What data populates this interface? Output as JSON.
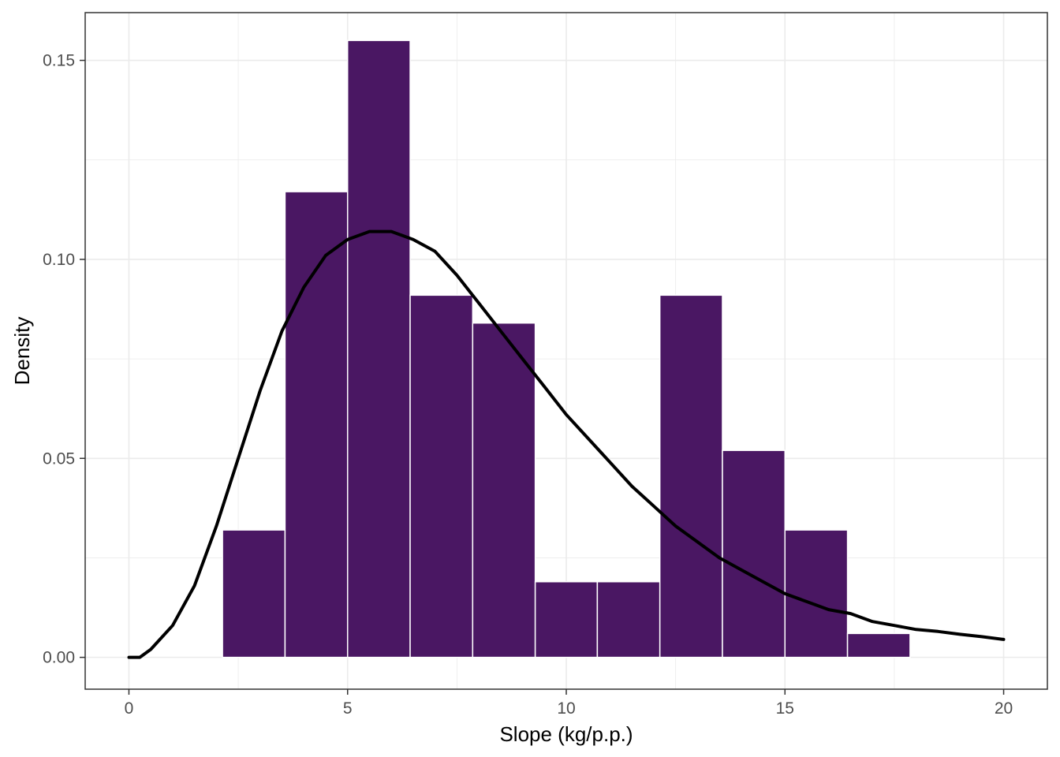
{
  "chart_data": {
    "type": "bar",
    "subtype": "histogram-with-density",
    "title": "",
    "xlabel": "Slope (kg/p.p.)",
    "ylabel": "Density",
    "xlim": [
      -1,
      21
    ],
    "ylim": [
      -0.008,
      0.162
    ],
    "x_ticks": [
      0,
      5,
      10,
      15,
      20
    ],
    "x_tick_labels": [
      "0",
      "5",
      "10",
      "15",
      "20"
    ],
    "y_ticks": [
      0.0,
      0.05,
      0.1,
      0.15
    ],
    "y_tick_labels": [
      "0.00",
      "0.05",
      "0.10",
      "0.15"
    ],
    "grid": true,
    "theme": "black-and-white panel border",
    "bins": [
      {
        "x0": 2.14,
        "x1": 3.57,
        "density": 0.032
      },
      {
        "x0": 3.57,
        "x1": 5.0,
        "density": 0.117
      },
      {
        "x0": 5.0,
        "x1": 6.43,
        "density": 0.155
      },
      {
        "x0": 6.43,
        "x1": 7.86,
        "density": 0.091
      },
      {
        "x0": 7.86,
        "x1": 9.29,
        "density": 0.084
      },
      {
        "x0": 9.29,
        "x1": 10.71,
        "density": 0.019
      },
      {
        "x0": 10.71,
        "x1": 12.14,
        "density": 0.019
      },
      {
        "x0": 12.14,
        "x1": 13.57,
        "density": 0.091
      },
      {
        "x0": 13.57,
        "x1": 15.0,
        "density": 0.052
      },
      {
        "x0": 15.0,
        "x1": 16.43,
        "density": 0.032
      },
      {
        "x0": 16.43,
        "x1": 17.86,
        "density": 0.006
      }
    ],
    "density_curve": {
      "x": [
        0,
        0.25,
        0.5,
        1,
        1.5,
        2,
        2.5,
        3,
        3.5,
        4,
        4.5,
        5,
        5.5,
        6,
        6.5,
        7,
        7.5,
        8,
        8.5,
        9,
        9.5,
        10,
        10.5,
        11,
        11.5,
        12,
        12.5,
        13,
        13.5,
        14,
        14.5,
        15,
        15.5,
        16,
        16.5,
        17,
        17.5,
        18,
        18.5,
        19,
        19.5,
        20
      ],
      "y": [
        0.0,
        0.0,
        0.002,
        0.008,
        0.018,
        0.033,
        0.05,
        0.067,
        0.082,
        0.093,
        0.101,
        0.105,
        0.107,
        0.107,
        0.105,
        0.102,
        0.096,
        0.089,
        0.082,
        0.075,
        0.068,
        0.061,
        0.055,
        0.049,
        0.043,
        0.038,
        0.033,
        0.029,
        0.025,
        0.022,
        0.019,
        0.016,
        0.014,
        0.012,
        0.011,
        0.009,
        0.008,
        0.007,
        0.0065,
        0.0058,
        0.0052,
        0.0045
      ]
    },
    "colors": {
      "bar_fill": "#4a1763",
      "bar_outline": "#ffffff",
      "curve": "#000000",
      "grid": "#ebebeb",
      "panel_border": "#333333",
      "tick_text": "#4d4d4d"
    }
  }
}
